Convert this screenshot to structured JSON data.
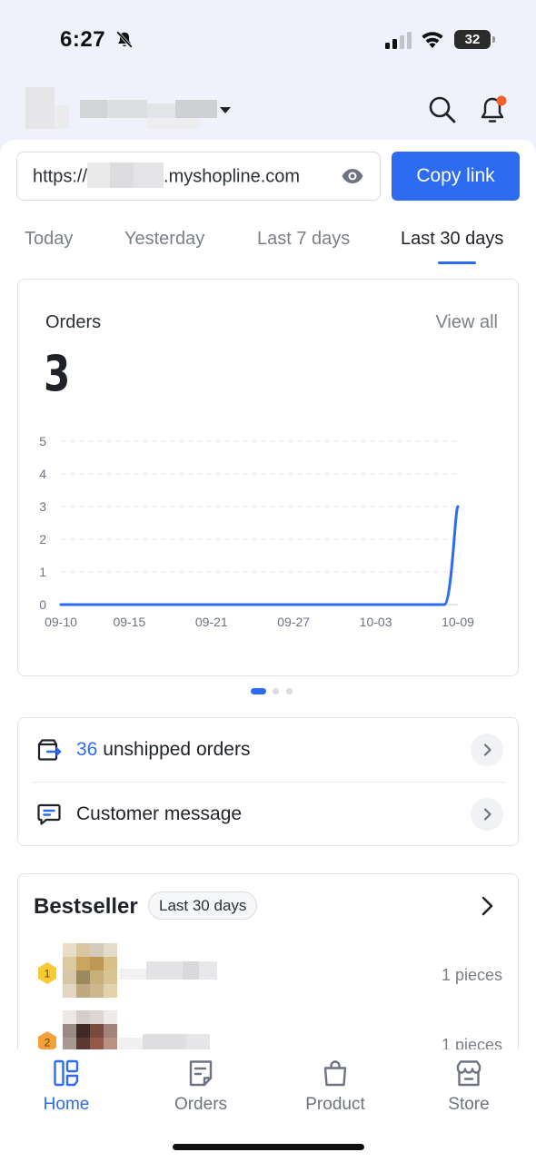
{
  "status_bar": {
    "time": "6:27",
    "battery": "32"
  },
  "header": {
    "store_name": "",
    "icons": [
      "search-icon",
      "notification-bell-icon"
    ],
    "notification_dot_color": "#f5602f"
  },
  "shop_link": {
    "prefix": "https://",
    "suffix": ".myshopline.com",
    "copy_label": "Copy link"
  },
  "date_tabs": [
    {
      "label": "Today",
      "active": false
    },
    {
      "label": "Yesterday",
      "active": false
    },
    {
      "label": "Last 7 days",
      "active": false
    },
    {
      "label": "Last 30 days",
      "active": true
    }
  ],
  "orders_card": {
    "title": "Orders",
    "view_all": "View all",
    "value": "3"
  },
  "chart_data": {
    "type": "line",
    "x": [
      "09-10",
      "09-11",
      "09-12",
      "09-13",
      "09-14",
      "09-15",
      "09-16",
      "09-17",
      "09-18",
      "09-19",
      "09-20",
      "09-21",
      "09-22",
      "09-23",
      "09-24",
      "09-25",
      "09-26",
      "09-27",
      "09-28",
      "09-29",
      "09-30",
      "10-01",
      "10-02",
      "10-03",
      "10-04",
      "10-05",
      "10-06",
      "10-07",
      "10-08",
      "10-09"
    ],
    "series": [
      {
        "values": [
          0,
          0,
          0,
          0,
          0,
          0,
          0,
          0,
          0,
          0,
          0,
          0,
          0,
          0,
          0,
          0,
          0,
          0,
          0,
          0,
          0,
          0,
          0,
          0,
          0,
          0,
          0,
          0,
          0,
          3
        ]
      }
    ],
    "x_tick_labels": [
      "09-10",
      "09-15",
      "09-21",
      "09-27",
      "10-03",
      "10-09"
    ],
    "y_ticks": [
      0,
      1,
      2,
      3,
      4,
      5
    ],
    "ylim": [
      0,
      5
    ],
    "grid": true,
    "line_color": "#2d6cf0"
  },
  "pager": {
    "count": 3,
    "active_index": 0
  },
  "tasks": [
    {
      "count": "36",
      "label": " unshipped orders",
      "icon": "shipping-box-icon"
    },
    {
      "count": "",
      "label": "Customer message",
      "icon": "chat-message-icon"
    }
  ],
  "bestseller": {
    "title": "Bestseller",
    "period": "Last 30 days",
    "items": [
      {
        "rank": "1",
        "pieces": "1 pieces",
        "rank_color": "#f7c934"
      },
      {
        "rank": "2",
        "pieces": "1 pieces",
        "rank_color": "#f3a13a"
      }
    ]
  },
  "bottom_nav": [
    {
      "label": "Home",
      "icon": "home-grid-icon",
      "active": true
    },
    {
      "label": "Orders",
      "icon": "orders-doc-icon",
      "active": false
    },
    {
      "label": "Product",
      "icon": "shopping-bag-icon",
      "active": false
    },
    {
      "label": "Store",
      "icon": "storefront-icon",
      "active": false
    }
  ],
  "colors": {
    "accent": "#2d6cf0",
    "page_bg": "#eff2fb"
  }
}
